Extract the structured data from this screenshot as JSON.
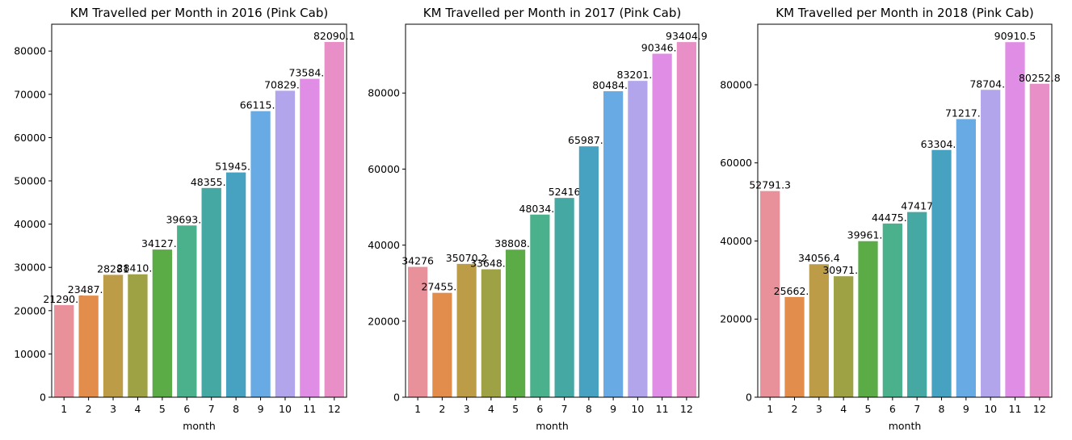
{
  "chart_data": [
    {
      "type": "bar",
      "title": "KM Travelled per Month in 2016 (Pink Cab)",
      "xlabel": "month",
      "ylabel": "",
      "categories": [
        "1",
        "2",
        "3",
        "4",
        "5",
        "6",
        "7",
        "8",
        "9",
        "10",
        "11",
        "12"
      ],
      "values": [
        21290.3,
        23487.2,
        28281,
        28410.2,
        34127.7,
        39693.5,
        48355.9,
        51945.9,
        66115.8,
        70829.9,
        73584.4,
        82090.1
      ],
      "value_labels": [
        "21290.3",
        "23487.2",
        "28281",
        "28410.2",
        "34127.7",
        "39693.5",
        "48355.9",
        "51945.9",
        "66115.8",
        "70829.9",
        "73584.4",
        "82090.1"
      ],
      "ylim": [
        0,
        86200
      ],
      "yticks": [
        0,
        10000,
        20000,
        30000,
        40000,
        50000,
        60000,
        70000,
        80000
      ],
      "grid": false
    },
    {
      "type": "bar",
      "title": "KM Travelled per Month in 2017 (Pink Cab)",
      "xlabel": "month",
      "ylabel": "",
      "categories": [
        "1",
        "2",
        "3",
        "4",
        "5",
        "6",
        "7",
        "8",
        "9",
        "10",
        "11",
        "12"
      ],
      "values": [
        34276,
        27455.5,
        35070.2,
        33648.6,
        38808.3,
        48034.6,
        52416,
        65987.6,
        80484.7,
        83201.8,
        90346.2,
        93404.9
      ],
      "value_labels": [
        "34276",
        "27455.5",
        "35070.2",
        "33648.6",
        "38808.3",
        "48034.6",
        "52416",
        "65987.6",
        "80484.7",
        "83201.8",
        "90346.2",
        "93404.9"
      ],
      "ylim": [
        0,
        98100
      ],
      "yticks": [
        0,
        20000,
        40000,
        60000,
        80000
      ],
      "grid": false
    },
    {
      "type": "bar",
      "title": "KM Travelled per Month in 2018 (Pink Cab)",
      "xlabel": "month",
      "ylabel": "",
      "categories": [
        "1",
        "2",
        "3",
        "4",
        "5",
        "6",
        "7",
        "8",
        "9",
        "10",
        "11",
        "12"
      ],
      "values": [
        52791.3,
        25662.8,
        34056.4,
        30971.5,
        39961.1,
        44475.4,
        47417,
        63304.4,
        71217.9,
        78704.8,
        90910.5,
        80252.8
      ],
      "value_labels": [
        "52791.3",
        "25662.8",
        "34056.4",
        "30971.5",
        "39961.1",
        "44475.4",
        "47417",
        "63304.4",
        "71217.9",
        "78704.8",
        "90910.5",
        "80252.8"
      ],
      "ylim": [
        0,
        95500
      ],
      "yticks": [
        0,
        20000,
        40000,
        60000,
        80000
      ],
      "grid": false
    }
  ],
  "colors": {
    "palette": [
      "#e8919b",
      "#e38d4c",
      "#bc9c47",
      "#9ea144",
      "#5bab46",
      "#4ab18c",
      "#45a8a3",
      "#47a2c1",
      "#68aae3",
      "#b3a5ec",
      "#e08de6",
      "#e88fc8"
    ]
  }
}
